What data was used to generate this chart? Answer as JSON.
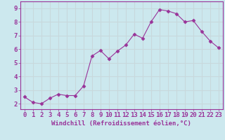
{
  "x": [
    0,
    1,
    2,
    3,
    4,
    5,
    6,
    7,
    8,
    9,
    10,
    11,
    12,
    13,
    14,
    15,
    16,
    17,
    18,
    19,
    20,
    21,
    22,
    23
  ],
  "y": [
    2.5,
    2.1,
    2.0,
    2.4,
    2.7,
    2.6,
    2.6,
    3.3,
    5.5,
    5.9,
    5.3,
    5.85,
    6.3,
    7.1,
    6.8,
    8.0,
    8.9,
    8.8,
    8.6,
    8.0,
    8.1,
    7.3,
    6.6,
    6.1
  ],
  "line_color": "#993399",
  "marker": "D",
  "marker_size": 2.5,
  "bg_color": "#cce8ee",
  "grid_color": "#c8d8dc",
  "xlabel": "Windchill (Refroidissement éolien,°C)",
  "ylabel_ticks": [
    2,
    3,
    4,
    5,
    6,
    7,
    8,
    9
  ],
  "xlim": [
    -0.5,
    23.5
  ],
  "ylim": [
    1.6,
    9.5
  ],
  "xlabel_fontsize": 6.5,
  "tick_fontsize": 6.5,
  "axis_color": "#993399"
}
